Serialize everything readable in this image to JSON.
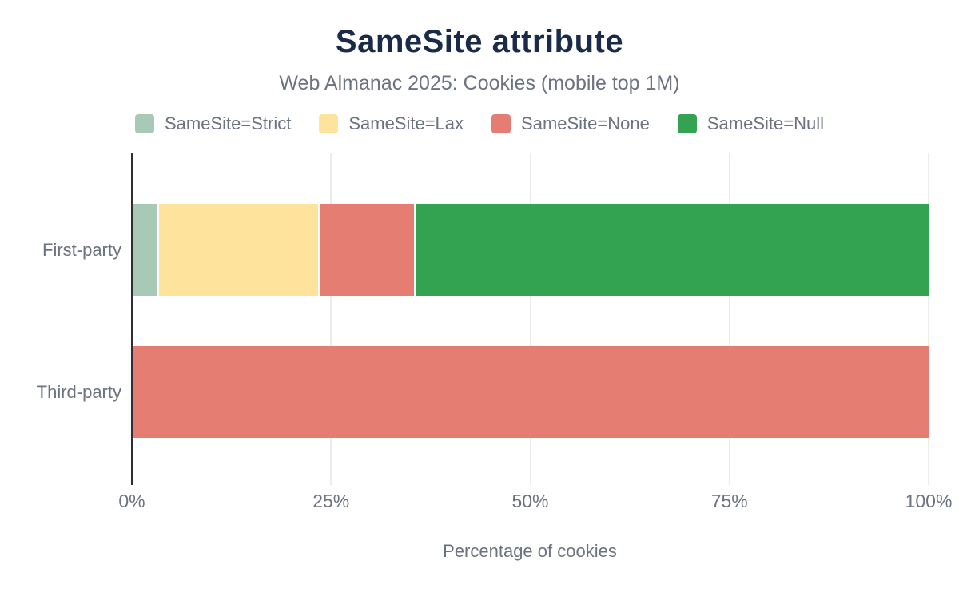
{
  "chart": {
    "title": "SameSite attribute",
    "subtitle": "Web Almanac 2025: Cookies (mobile top 1M)",
    "xlabel": "Percentage of cookies"
  },
  "colors": {
    "title_text": "#1a2b49",
    "label_text": "#6b7280",
    "axis_line": "#2f2f2f",
    "grid_line": "#ececec",
    "background": "#ffffff"
  },
  "chart_data": {
    "type": "bar",
    "orientation": "horizontal",
    "stacked": true,
    "title": "SameSite attribute",
    "subtitle": "Web Almanac 2025: Cookies (mobile top 1M)",
    "xlabel": "Percentage of cookies",
    "categories": [
      "First-party",
      "Third-party"
    ],
    "series": [
      {
        "name": "SameSite=Strict",
        "color": "#a8c9b6",
        "values": [
          3.1,
          0
        ]
      },
      {
        "name": "SameSite=Lax",
        "color": "#fde39b",
        "values": [
          20.1,
          0
        ]
      },
      {
        "name": "SameSite=None",
        "color": "#e57d73",
        "values": [
          12.0,
          100
        ]
      },
      {
        "name": "SameSite=Null",
        "color": "#34a351",
        "values": [
          64.8,
          0
        ]
      }
    ],
    "xlim": [
      0,
      100
    ],
    "x_ticks": [
      {
        "value": 0,
        "label": "0%"
      },
      {
        "value": 25,
        "label": "25%"
      },
      {
        "value": 50,
        "label": "50%"
      },
      {
        "value": 75,
        "label": "75%"
      },
      {
        "value": 100,
        "label": "100%"
      }
    ],
    "grid": "vertical",
    "legend_position": "top"
  }
}
